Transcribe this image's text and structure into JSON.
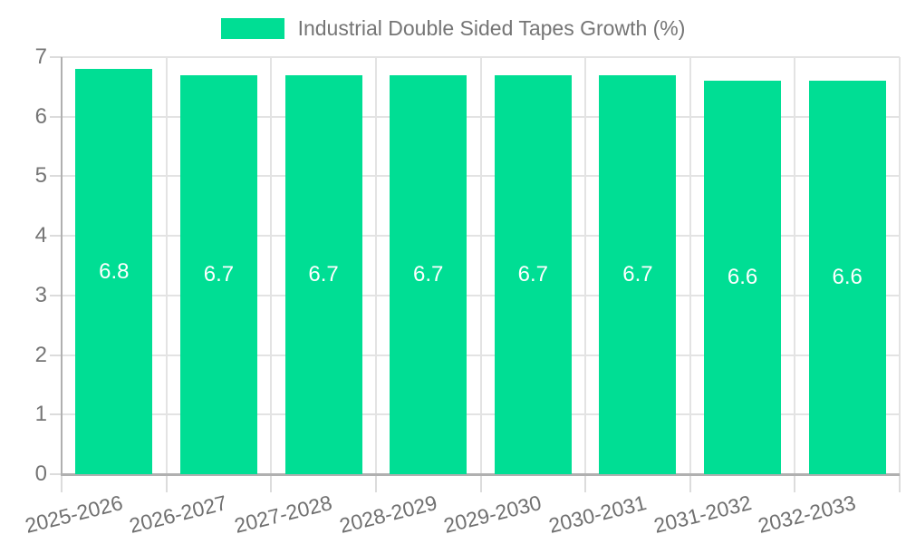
{
  "chart_data": {
    "type": "bar",
    "title": "Industrial Double Sided Tapes Growth (%)",
    "legend": {
      "label": "Industrial Double Sided Tapes Growth (%)",
      "position": "top-center",
      "swatch_color": "#00de94"
    },
    "categories": [
      "2025-2026",
      "2026-2027",
      "2027-2028",
      "2028-2029",
      "2029-2030",
      "2030-2031",
      "2031-2032",
      "2032-2033"
    ],
    "values": [
      6.8,
      6.7,
      6.7,
      6.7,
      6.7,
      6.7,
      6.6,
      6.6
    ],
    "value_labels": [
      "6.8",
      "6.7",
      "6.7",
      "6.7",
      "6.7",
      "6.7",
      "6.6",
      "6.6"
    ],
    "xlabel": "",
    "ylabel": "",
    "ylim": [
      0,
      7
    ],
    "y_ticks": [
      "0",
      "1",
      "2",
      "3",
      "4",
      "5",
      "6",
      "7"
    ],
    "grid": true,
    "legend_position": "top-center",
    "bar_color": "#00de94",
    "value_label_color": "#ffffff",
    "colors": {
      "grid": "#e3e3e3",
      "tick": "#dcdcdc",
      "axis_spine": "#b0b0b0",
      "y_tick_label": "#757575",
      "x_tick_label": "#707070",
      "legend_text": "#757575",
      "background": "#ffffff"
    }
  }
}
